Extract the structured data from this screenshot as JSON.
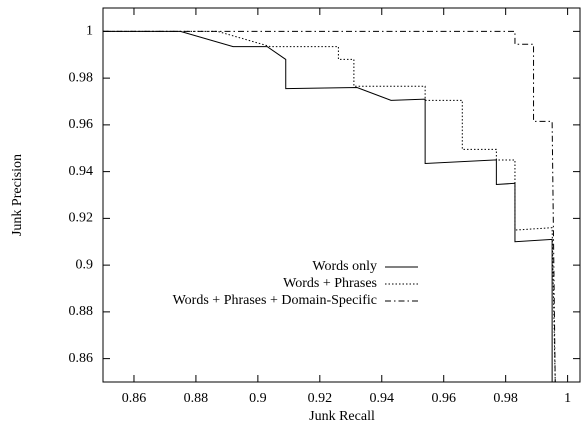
{
  "chart_data": {
    "type": "line",
    "xlabel": "Junk Recall",
    "ylabel": "Junk Precision",
    "xlim": [
      0.85,
      1.004
    ],
    "ylim": [
      0.85,
      1.01
    ],
    "xticks": [
      0.86,
      0.88,
      0.9,
      0.92,
      0.94,
      0.96,
      0.98,
      1
    ],
    "yticks": [
      0.86,
      0.88,
      0.9,
      0.92,
      0.94,
      0.96,
      0.98,
      1
    ],
    "legend": "center",
    "series": [
      {
        "name": "Words only",
        "color": "#000000",
        "linestyle": "solid",
        "x": [
          0.85,
          0.875,
          0.892,
          0.903,
          0.909,
          0.909,
          0.932,
          0.943,
          0.954,
          0.954,
          0.977,
          0.977,
          0.983,
          0.983,
          0.995,
          0.995
        ],
        "values": [
          1,
          1,
          0.9935,
          0.9935,
          0.988,
          0.9755,
          0.976,
          0.9705,
          0.971,
          0.9435,
          0.945,
          0.9345,
          0.935,
          0.91,
          0.911,
          0.85
        ]
      },
      {
        "name": "Words + Phrases",
        "color": "#000000",
        "linestyle": "dotted",
        "x": [
          0.85,
          0.887,
          0.904,
          0.926,
          0.926,
          0.931,
          0.931,
          0.954,
          0.954,
          0.966,
          0.966,
          0.977,
          0.977,
          0.983,
          0.983,
          0.995,
          0.996
        ],
        "values": [
          1,
          1,
          0.9935,
          0.9935,
          0.988,
          0.988,
          0.9765,
          0.9765,
          0.9705,
          0.9705,
          0.9495,
          0.9495,
          0.945,
          0.945,
          0.915,
          0.916,
          0.85
        ]
      },
      {
        "name": "Words + Phrases + Domain-Specific",
        "color": "#000000",
        "linestyle": "dashdot",
        "x": [
          0.85,
          0.983,
          0.983,
          0.989,
          0.989,
          0.995,
          0.996
        ],
        "values": [
          1,
          1,
          0.9945,
          0.9945,
          0.9615,
          0.9615,
          0.85
        ]
      }
    ]
  }
}
